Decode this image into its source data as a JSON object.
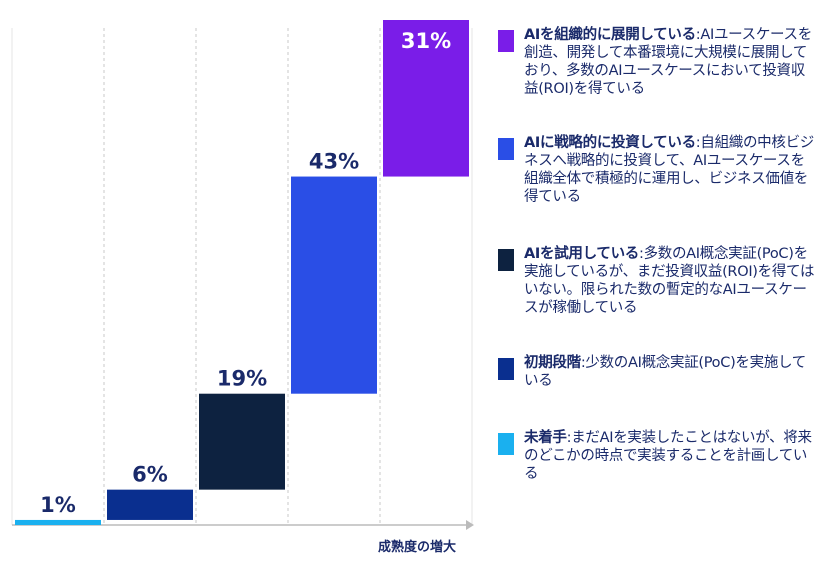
{
  "chart_data": {
    "type": "bar",
    "subtype": "waterfall",
    "xlabel": "成熟度の増大",
    "categories": [
      "未着手",
      "初期段階",
      "AIを試用している",
      "AIに戦略的に投資している",
      "AIを組織的に展開している"
    ],
    "values": [
      1,
      6,
      19,
      43,
      31
    ],
    "labels": [
      "1%",
      "6%",
      "19%",
      "43%",
      "31%"
    ],
    "colors": [
      "#1ab0ef",
      "#0a2f8f",
      "#0d2240",
      "#2a4ee6",
      "#7a1de8"
    ],
    "grid": "vertical dashed"
  },
  "legend": [
    {
      "bold": "AIを組織的に展開している",
      "text": ":AIユースケースを創造、開発して本番環境に大規模に展開しており、多数のAIユースケースにおいて投資収益(ROI)を得ている",
      "color": "#7a1de8"
    },
    {
      "bold": "AIに戦略的に投資している",
      "text": ":自組織の中核ビジネスへ戦略的に投資して、AIユースケースを組織全体で積極的に運用し、ビジネス価値を得ている",
      "color": "#2a4ee6"
    },
    {
      "bold": "AIを試用している",
      "text": ":多数のAI概念実証(PoC)を実施しているが、まだ投資収益(ROI)を得てはいない。限られた数の暫定的なAIユースケースが稼働している",
      "color": "#0d2240"
    },
    {
      "bold": "初期段階",
      "text": ":少数のAI概念実証(PoC)を実施している",
      "color": "#0a2f8f"
    },
    {
      "bold": "未着手",
      "text": ":まだAIを実装したことはないが、将来のどこかの時点で実装することを計画している",
      "color": "#1ab0ef"
    }
  ]
}
